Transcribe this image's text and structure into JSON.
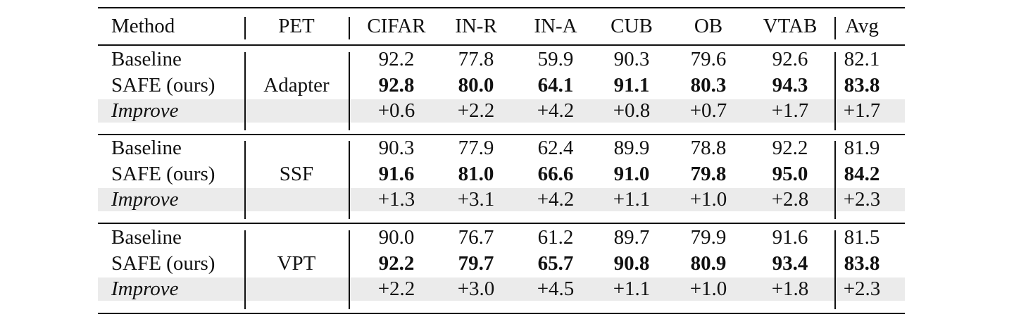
{
  "table": {
    "headers": [
      "Method",
      "PET",
      "CIFAR",
      "IN-R",
      "IN-A",
      "CUB",
      "OB",
      "VTAB",
      "Avg"
    ],
    "groups": [
      {
        "pet": "Adapter",
        "rows": [
          {
            "method": "Baseline",
            "values": [
              "92.2",
              "77.8",
              "59.9",
              "90.3",
              "79.6",
              "92.6",
              "82.1"
            ]
          },
          {
            "method": "SAFE (ours)",
            "values": [
              "92.8",
              "80.0",
              "64.1",
              "91.1",
              "80.3",
              "94.3",
              "83.8"
            ]
          },
          {
            "method": "Improve",
            "values": [
              "+0.6",
              "+2.2",
              "+4.2",
              "+0.8",
              "+0.7",
              "+1.7",
              "+1.7"
            ]
          }
        ]
      },
      {
        "pet": "SSF",
        "rows": [
          {
            "method": "Baseline",
            "values": [
              "90.3",
              "77.9",
              "62.4",
              "89.9",
              "78.8",
              "92.2",
              "81.9"
            ]
          },
          {
            "method": "SAFE (ours)",
            "values": [
              "91.6",
              "81.0",
              "66.6",
              "91.0",
              "79.8",
              "95.0",
              "84.2"
            ]
          },
          {
            "method": "Improve",
            "values": [
              "+1.3",
              "+3.1",
              "+4.2",
              "+1.1",
              "+1.0",
              "+2.8",
              "+2.3"
            ]
          }
        ]
      },
      {
        "pet": "VPT",
        "rows": [
          {
            "method": "Baseline",
            "values": [
              "90.0",
              "76.7",
              "61.2",
              "89.7",
              "79.9",
              "91.6",
              "81.5"
            ]
          },
          {
            "method": "SAFE (ours)",
            "values": [
              "92.2",
              "79.7",
              "65.7",
              "90.8",
              "80.9",
              "93.4",
              "83.8"
            ]
          },
          {
            "method": "Improve",
            "values": [
              "+2.2",
              "+3.0",
              "+4.5",
              "+1.1",
              "+1.0",
              "+1.8",
              "+2.3"
            ]
          }
        ]
      }
    ]
  },
  "colors": {
    "improve_row_background": "#ebebeb",
    "rule": "#111111"
  }
}
